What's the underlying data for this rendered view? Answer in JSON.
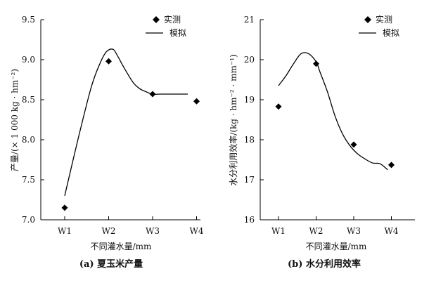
{
  "chart_data": [
    {
      "type": "line",
      "caption": "(a) 夏玉米产量",
      "xlabel": "不同灌水量/mm",
      "ylabel": "产量/(× 1 000 kg · hm⁻²)",
      "categories": [
        "W1",
        "W2",
        "W3",
        "W4"
      ],
      "ylim": [
        7.0,
        9.5
      ],
      "yticks": [
        "7.0",
        "7.5",
        "8.0",
        "8.5",
        "9.0",
        "9.5"
      ],
      "series": [
        {
          "name": "实测",
          "kind": "scatter",
          "marker": "diamond",
          "x": [
            1,
            2,
            3,
            4
          ],
          "values": [
            7.15,
            8.98,
            8.57,
            8.48
          ]
        },
        {
          "name": "模拟",
          "kind": "line",
          "x": [
            1.0,
            1.3,
            1.6,
            1.8,
            1.95,
            2.1,
            2.2,
            2.35,
            2.55,
            2.7,
            2.85,
            3.0,
            3.2,
            3.5,
            3.8
          ],
          "values": [
            7.3,
            8.0,
            8.65,
            8.95,
            9.1,
            9.13,
            9.05,
            8.9,
            8.72,
            8.64,
            8.6,
            8.57,
            8.57,
            8.57,
            8.57
          ]
        }
      ],
      "legend": "top-right",
      "grid": false
    },
    {
      "type": "line",
      "caption": "(b) 水分利用效率",
      "xlabel": "不同灌水量/mm",
      "ylabel": "水分利用效率/(kg · hm⁻² · mm⁻¹)",
      "categories": [
        "W1",
        "W2",
        "W3",
        "W4"
      ],
      "ylim": [
        16,
        21
      ],
      "yticks": [
        "16",
        "17",
        "18",
        "19",
        "20",
        "21"
      ],
      "series": [
        {
          "name": "实测",
          "kind": "scatter",
          "marker": "diamond",
          "x": [
            1,
            2,
            3,
            4
          ],
          "values": [
            18.83,
            19.9,
            17.88,
            17.37
          ]
        },
        {
          "name": "模拟",
          "kind": "line",
          "x": [
            1.0,
            1.2,
            1.4,
            1.6,
            1.8,
            2.0,
            2.1,
            2.3,
            2.5,
            2.7,
            2.9,
            3.1,
            3.3,
            3.5,
            3.7,
            3.9
          ],
          "values": [
            19.35,
            19.6,
            19.9,
            20.15,
            20.15,
            19.95,
            19.7,
            19.2,
            18.6,
            18.15,
            17.85,
            17.65,
            17.52,
            17.42,
            17.4,
            17.25
          ]
        }
      ],
      "legend": "top-right",
      "grid": false
    }
  ]
}
